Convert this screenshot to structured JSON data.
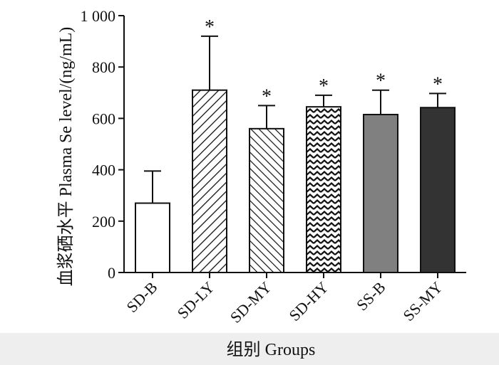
{
  "chart_data": {
    "type": "bar",
    "title": "",
    "xlabel": "组别 Groups",
    "ylabel": "血浆硒水平 Plasma Se level/(ng/mL)",
    "ylim": [
      0,
      1000
    ],
    "yticks": [
      0,
      200,
      400,
      600,
      800,
      1000
    ],
    "ytick_labels": [
      "0",
      "200",
      "400",
      "600",
      "800",
      "1 000"
    ],
    "categories": [
      "SD-B",
      "SD-LY",
      "SD-MY",
      "SD-HY",
      "SS-B",
      "SS-MY"
    ],
    "values": [
      270,
      710,
      560,
      645,
      615,
      642
    ],
    "errors": [
      125,
      210,
      90,
      45,
      95,
      55
    ],
    "significance": [
      "",
      "*",
      "*",
      "*",
      "*",
      "*"
    ],
    "bar_styles": [
      {
        "fill": "#ffffff",
        "pattern": "none"
      },
      {
        "fill": "#ffffff",
        "pattern": "diagonal-forward"
      },
      {
        "fill": "#ffffff",
        "pattern": "diagonal-back"
      },
      {
        "fill": "#ffffff",
        "pattern": "zigzag"
      },
      {
        "fill": "#808080",
        "pattern": "none"
      },
      {
        "fill": "#333333",
        "pattern": "none"
      }
    ],
    "grid": false
  }
}
